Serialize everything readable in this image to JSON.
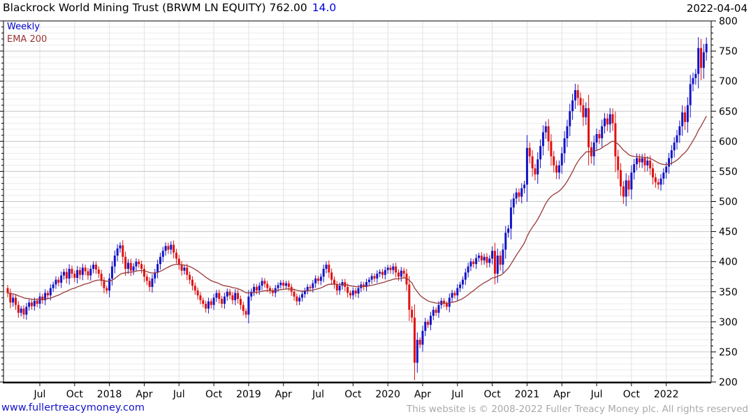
{
  "header": {
    "title": "Blackrock World Mining Trust (BRWM LN EQUITY) 762.00",
    "change": "14.0",
    "date": "2022-04-04"
  },
  "legend": {
    "frequency": "Weekly",
    "overlay": "EMA 200"
  },
  "footer": {
    "site_link": "www.fullertreacymoney.com",
    "copyright": "This website is © 2008-2022 Fuller Treacy Money plc. All rights reserved"
  },
  "chart_data": {
    "type": "candlestick",
    "title": "Blackrock World Mining Trust (BRWM LN EQUITY)",
    "instrument": "Blackrock World Mining Trust",
    "ticker": "BRWM LN EQUITY",
    "last_price": 762.0,
    "change": 14.0,
    "frequency": "Weekly",
    "overlay": "EMA 200",
    "ema_period_weeks": 29,
    "first_open": 356,
    "ylim": [
      200,
      800
    ],
    "y_tick_step": 50,
    "y_minor_step": 10,
    "y_ticks": [
      200,
      250,
      300,
      350,
      400,
      450,
      500,
      550,
      600,
      650,
      700,
      750,
      800
    ],
    "legend_position": "top-left",
    "grid": "on",
    "colors": {
      "up": "#1414c8",
      "down": "#e01212",
      "ema": "#9a3939",
      "link": "#1414cc",
      "change": "#0000dd",
      "copyright": "#a9a9a9"
    },
    "x_ticks": [
      {
        "label": "Jul",
        "week": 12
      },
      {
        "label": "Oct",
        "week": 25
      },
      {
        "label": "2018",
        "week": 38
      },
      {
        "label": "Apr",
        "week": 51
      },
      {
        "label": "Jul",
        "week": 64
      },
      {
        "label": "Oct",
        "week": 77
      },
      {
        "label": "2019",
        "week": 90
      },
      {
        "label": "Apr",
        "week": 103
      },
      {
        "label": "Jul",
        "week": 116
      },
      {
        "label": "Oct",
        "week": 129
      },
      {
        "label": "2020",
        "week": 142
      },
      {
        "label": "Apr",
        "week": 155
      },
      {
        "label": "Jul",
        "week": 168
      },
      {
        "label": "Oct",
        "week": 181
      },
      {
        "label": "2021",
        "week": 194
      },
      {
        "label": "Apr",
        "week": 207
      },
      {
        "label": "Jul",
        "week": 220
      },
      {
        "label": "Oct",
        "week": 233
      },
      {
        "label": "2022",
        "week": 246
      }
    ],
    "weekly_closes": [
      348,
      332,
      340,
      328,
      315,
      322,
      312,
      325,
      332,
      326,
      335,
      330,
      342,
      336,
      348,
      344,
      356,
      362,
      370,
      365,
      377,
      383,
      372,
      388,
      380,
      373,
      386,
      378,
      390,
      384,
      377,
      388,
      395,
      387,
      380,
      368,
      356,
      352,
      372,
      392,
      410,
      422,
      427,
      408,
      388,
      398,
      385,
      392,
      400,
      396,
      388,
      375,
      368,
      358,
      372,
      382,
      396,
      408,
      418,
      426,
      420,
      428,
      415,
      405,
      395,
      385,
      390,
      378,
      370,
      360,
      352,
      344,
      336,
      330,
      322,
      334,
      328,
      340,
      348,
      338,
      330,
      342,
      350,
      344,
      336,
      348,
      338,
      328,
      318,
      312,
      342,
      350,
      358,
      352,
      360,
      368,
      363,
      356,
      352,
      348,
      356,
      361,
      365,
      360,
      364,
      358,
      350,
      342,
      334,
      340,
      346,
      352,
      358,
      356,
      364,
      372,
      368,
      375,
      388,
      395,
      382,
      370,
      362,
      352,
      360,
      366,
      358,
      348,
      344,
      352,
      347,
      356,
      362,
      358,
      366,
      370,
      376,
      372,
      380,
      383,
      378,
      386,
      390,
      386,
      392,
      382,
      375,
      385,
      380,
      362,
      320,
      307,
      232,
      270,
      262,
      285,
      300,
      295,
      310,
      320,
      315,
      328,
      335,
      330,
      325,
      340,
      348,
      344,
      356,
      362,
      370,
      382,
      392,
      400,
      396,
      406,
      410,
      402,
      408,
      398,
      405,
      418,
      380,
      410,
      395,
      420,
      448,
      455,
      490,
      505,
      515,
      508,
      522,
      528,
      589,
      575,
      555,
      545,
      570,
      592,
      615,
      625,
      600,
      575,
      560,
      548,
      560,
      580,
      605,
      625,
      650,
      668,
      685,
      672,
      660,
      640,
      655,
      590,
      575,
      598,
      612,
      605,
      625,
      638,
      628,
      645,
      630,
      575,
      552,
      525,
      508,
      535,
      520,
      548,
      562,
      572,
      565,
      572,
      560,
      568,
      555,
      540,
      532,
      528,
      538,
      548,
      558,
      572,
      585,
      598,
      610,
      625,
      648,
      632,
      660,
      695,
      705,
      712,
      755,
      722,
      748,
      762
    ]
  }
}
